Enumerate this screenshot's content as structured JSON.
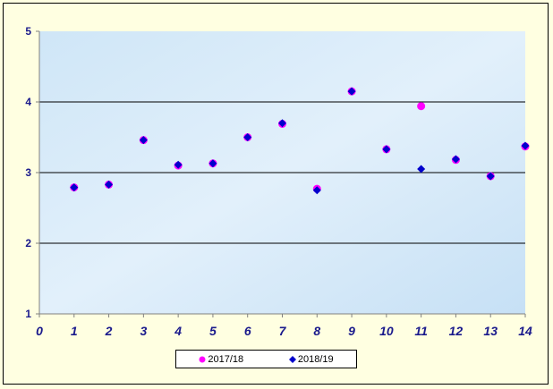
{
  "chart_data": {
    "type": "scatter",
    "title": "",
    "xlabel": "",
    "ylabel": "",
    "xlim": [
      0,
      14
    ],
    "ylim": [
      1,
      5
    ],
    "x_ticks": [
      "0",
      "1",
      "2",
      "3",
      "4",
      "5",
      "6",
      "7",
      "8",
      "9",
      "10",
      "11",
      "12",
      "13",
      "14"
    ],
    "y_ticks": [
      "1",
      "2",
      "3",
      "4",
      "5"
    ],
    "grid": "horizontal",
    "legend_position": "bottom",
    "series": [
      {
        "name": "2017/18",
        "marker": "circle",
        "color": "#ff00ff",
        "x": [
          1,
          2,
          3,
          4,
          5,
          6,
          7,
          8,
          9,
          10,
          11,
          12,
          13,
          14
        ],
        "y": [
          2.79,
          2.83,
          3.46,
          3.1,
          3.13,
          3.5,
          3.69,
          2.77,
          4.15,
          3.33,
          3.94,
          3.18,
          2.95,
          3.37
        ]
      },
      {
        "name": "2018/19",
        "marker": "diamond",
        "color": "#0000cc",
        "x": [
          1,
          2,
          3,
          4,
          5,
          6,
          7,
          8,
          9,
          10,
          11,
          12,
          13,
          14
        ],
        "y": [
          2.79,
          2.83,
          3.46,
          3.11,
          3.13,
          3.5,
          3.7,
          2.75,
          4.15,
          3.33,
          3.05,
          3.19,
          2.95,
          3.38
        ]
      }
    ]
  }
}
